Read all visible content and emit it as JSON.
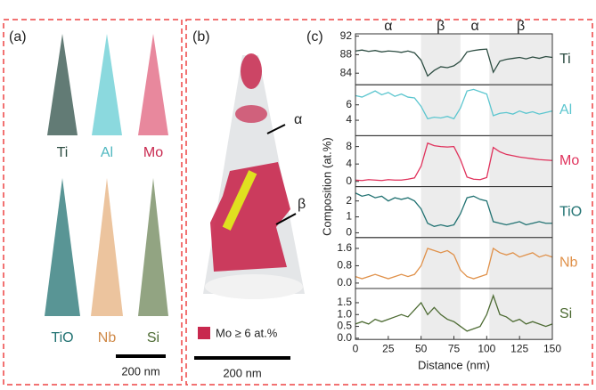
{
  "labels": {
    "a": "(a)",
    "b": "(b)",
    "c": "(c)",
    "a_elements": [
      "Ti",
      "Al",
      "Mo",
      "TiO",
      "Nb",
      "Si"
    ],
    "scale_a": "200 nm",
    "scale_b": "200 nm",
    "b_alpha": "α",
    "b_beta": "β",
    "legend": "Mo ≥ 6 at.%"
  },
  "chart_data": [
    {
      "type": "line",
      "ylabel": "Composition (at.%)",
      "shaded_regions": [
        [
          50,
          80
        ],
        [
          102,
          150
        ]
      ],
      "annotations": [
        {
          "text": "α",
          "x": 25
        },
        {
          "text": "β",
          "x": 65
        },
        {
          "text": "α",
          "x": 91
        },
        {
          "text": "β",
          "x": 126
        }
      ],
      "x": [
        0,
        5,
        10,
        15,
        20,
        25,
        30,
        35,
        40,
        45,
        50,
        55,
        60,
        65,
        70,
        75,
        80,
        85,
        90,
        95,
        100,
        105,
        110,
        115,
        120,
        125,
        130,
        135,
        140,
        145,
        150
      ],
      "xlim": [
        0,
        150
      ],
      "ylim": [
        81.5,
        92.5
      ],
      "yticks": [
        84,
        88,
        92
      ],
      "series": [
        {
          "name": "Ti",
          "color": "#2d4d42",
          "values": [
            88.8,
            89.0,
            88.7,
            88.9,
            88.6,
            88.8,
            88.7,
            88.5,
            88.8,
            88.4,
            86.8,
            83.4,
            84.6,
            85.4,
            85.2,
            85.6,
            86.6,
            88.6,
            88.9,
            89.1,
            89.2,
            84.2,
            86.6,
            87.0,
            87.2,
            87.4,
            87.1,
            87.5,
            87.2,
            87.6,
            87.4
          ]
        }
      ]
    },
    {
      "type": "line",
      "x": [
        0,
        5,
        10,
        15,
        20,
        25,
        30,
        35,
        40,
        45,
        50,
        55,
        60,
        65,
        70,
        75,
        80,
        85,
        90,
        95,
        100,
        105,
        110,
        115,
        120,
        125,
        130,
        135,
        140,
        145,
        150
      ],
      "xlim": [
        0,
        150
      ],
      "ylim": [
        2,
        8.6
      ],
      "yticks": [
        4,
        6
      ],
      "series": [
        {
          "name": "Al",
          "color": "#5cc6cf",
          "values": [
            7.2,
            7.0,
            7.4,
            7.8,
            7.3,
            7.6,
            7.1,
            7.4,
            7.0,
            6.9,
            5.8,
            4.2,
            4.4,
            4.3,
            4.5,
            4.2,
            5.6,
            7.8,
            8.0,
            7.7,
            7.4,
            4.6,
            4.9,
            5.0,
            4.8,
            5.2,
            4.9,
            5.1,
            4.8,
            5.0,
            5.2
          ]
        }
      ]
    },
    {
      "type": "line",
      "x": [
        0,
        5,
        10,
        15,
        20,
        25,
        30,
        35,
        40,
        45,
        50,
        55,
        60,
        65,
        70,
        75,
        80,
        85,
        90,
        95,
        100,
        105,
        110,
        115,
        120,
        125,
        130,
        135,
        140,
        145,
        150
      ],
      "xlim": [
        0,
        150
      ],
      "ylim": [
        -1.2,
        10.5
      ],
      "yticks": [
        0,
        4,
        8
      ],
      "series": [
        {
          "name": "Mo",
          "color": "#e0325c",
          "values": [
            0.3,
            0.2,
            0.4,
            0.3,
            0.2,
            0.4,
            0.3,
            0.3,
            0.5,
            0.8,
            3.5,
            8.8,
            8.2,
            8.0,
            7.9,
            8.0,
            5.0,
            1.0,
            0.5,
            0.4,
            0.9,
            7.8,
            6.8,
            6.2,
            5.9,
            5.6,
            5.4,
            5.2,
            5.0,
            4.9,
            4.8
          ]
        }
      ]
    },
    {
      "type": "line",
      "x": [
        0,
        5,
        10,
        15,
        20,
        25,
        30,
        35,
        40,
        45,
        50,
        55,
        60,
        65,
        70,
        75,
        80,
        85,
        90,
        95,
        100,
        105,
        110,
        115,
        120,
        125,
        130,
        135,
        140,
        145,
        150
      ],
      "xlim": [
        0,
        150
      ],
      "ylim": [
        -0.3,
        2.9
      ],
      "yticks": [
        0,
        1,
        2
      ],
      "series": [
        {
          "name": "TiO",
          "color": "#217272",
          "values": [
            2.5,
            2.3,
            2.4,
            2.2,
            2.3,
            2.0,
            2.2,
            2.1,
            2.2,
            2.0,
            1.5,
            0.6,
            0.4,
            0.5,
            0.4,
            0.5,
            1.2,
            2.2,
            2.3,
            2.1,
            2.0,
            0.7,
            0.6,
            0.5,
            0.6,
            0.7,
            0.5,
            0.6,
            0.7,
            0.6,
            0.6
          ]
        }
      ]
    },
    {
      "type": "line",
      "x": [
        0,
        5,
        10,
        15,
        20,
        25,
        30,
        35,
        40,
        45,
        50,
        55,
        60,
        65,
        70,
        75,
        80,
        85,
        90,
        95,
        100,
        105,
        110,
        115,
        120,
        125,
        130,
        135,
        140,
        145,
        150
      ],
      "xlim": [
        0,
        150
      ],
      "ylim": [
        -0.25,
        2.1
      ],
      "yticks": [
        {
          "value": 0,
          "label": "0.0"
        },
        0.8,
        1.6
      ],
      "series": [
        {
          "name": "Nb",
          "color": "#e0914a",
          "values": [
            0.3,
            0.2,
            0.3,
            0.4,
            0.3,
            0.2,
            0.3,
            0.4,
            0.3,
            0.4,
            0.8,
            1.6,
            1.5,
            1.4,
            1.5,
            1.3,
            0.6,
            0.3,
            0.2,
            0.3,
            0.4,
            1.6,
            1.4,
            1.3,
            1.4,
            1.2,
            1.3,
            1.4,
            1.2,
            1.3,
            1.2
          ]
        }
      ]
    },
    {
      "type": "line",
      "xlabel": "Distance (nm)",
      "x": [
        0,
        5,
        10,
        15,
        20,
        25,
        30,
        35,
        40,
        45,
        50,
        55,
        60,
        65,
        70,
        75,
        80,
        85,
        90,
        95,
        100,
        105,
        110,
        115,
        120,
        125,
        130,
        135,
        140,
        145,
        150
      ],
      "xlim": [
        0,
        150
      ],
      "xticks": [
        0,
        25,
        50,
        75,
        100,
        125,
        150
      ],
      "ylim": [
        -0.05,
        2.1
      ],
      "yticks": [
        {
          "value": 0,
          "label": "0.0"
        },
        0.5,
        {
          "value": 1,
          "label": "1.0"
        },
        1.5
      ],
      "series": [
        {
          "name": "Si",
          "color": "#4d6b33",
          "values": [
            0.6,
            0.7,
            0.6,
            0.8,
            0.7,
            0.8,
            0.9,
            1.0,
            0.9,
            1.2,
            1.5,
            1.0,
            1.3,
            1.0,
            0.8,
            0.7,
            0.5,
            0.3,
            0.4,
            0.5,
            1.0,
            1.8,
            1.0,
            0.9,
            0.7,
            0.8,
            0.6,
            0.7,
            0.6,
            0.5,
            0.6
          ]
        }
      ]
    }
  ]
}
